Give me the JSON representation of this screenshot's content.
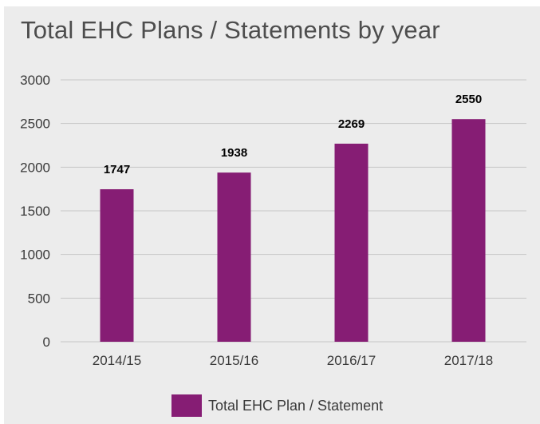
{
  "chart_data": {
    "type": "bar",
    "title": "Total EHC Plans / Statements by year",
    "categories": [
      "2014/15",
      "2015/16",
      "2016/17",
      "2017/18"
    ],
    "series": [
      {
        "name": "Total EHC Plan / Statement",
        "values": [
          1747,
          1938,
          2269,
          2550
        ],
        "color": "#861d74"
      }
    ],
    "xlabel": "",
    "ylabel": "",
    "ylim": [
      0,
      3000
    ],
    "yticks": [
      0,
      500,
      1000,
      1500,
      2000,
      2500,
      3000
    ],
    "grid": true,
    "data_labels": true,
    "legend_position": "bottom"
  },
  "colors": {
    "background": "#ececec",
    "gridline": "#c6c6c6",
    "bar": "#861d74"
  }
}
